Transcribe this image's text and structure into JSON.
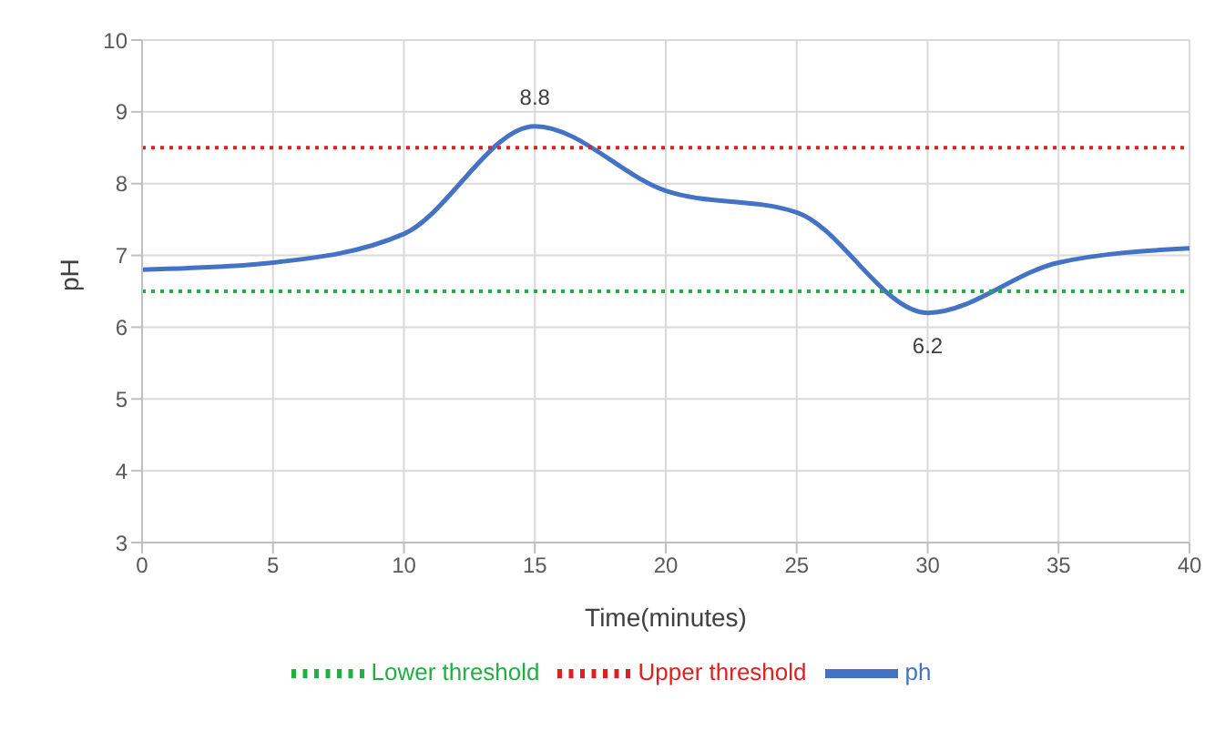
{
  "chart_data": {
    "type": "line",
    "xlabel": "Time(minutes)",
    "ylabel": "pH",
    "x": [
      0,
      5,
      10,
      15,
      20,
      25,
      30,
      35,
      40
    ],
    "series": [
      {
        "name": "ph",
        "color": "#4472c4",
        "values": [
          6.8,
          6.9,
          7.3,
          8.8,
          7.9,
          7.6,
          6.2,
          6.9,
          7.1
        ],
        "value_labels": [
          null,
          null,
          null,
          "8.8",
          null,
          null,
          "6.2",
          null,
          null
        ],
        "line_style": "solid"
      },
      {
        "name": "Upper threshold",
        "color": "#e02020",
        "values": [
          8.5,
          8.5,
          8.5,
          8.5,
          8.5,
          8.5,
          8.5,
          8.5,
          8.5
        ],
        "line_style": "dotted"
      },
      {
        "name": "Lower threshold",
        "color": "#20b040",
        "values": [
          6.5,
          6.5,
          6.5,
          6.5,
          6.5,
          6.5,
          6.5,
          6.5,
          6.5
        ],
        "line_style": "dotted"
      }
    ],
    "xlim": [
      0,
      40
    ],
    "xticks": [
      0,
      5,
      10,
      15,
      20,
      25,
      30,
      35,
      40
    ],
    "ylim": [
      3,
      10
    ],
    "yticks": [
      3,
      4,
      5,
      6,
      7,
      8,
      9,
      10
    ],
    "grid": true,
    "legend": "bottom",
    "marker": "none"
  }
}
